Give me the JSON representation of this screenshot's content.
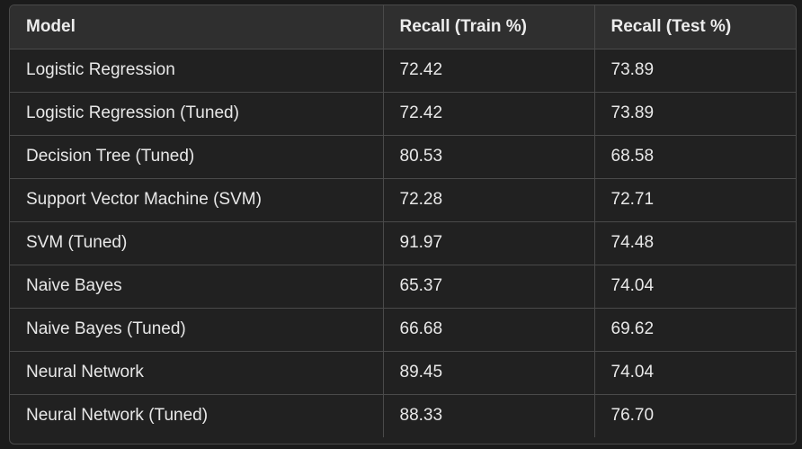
{
  "table": {
    "headers": [
      "Model",
      "Recall (Train %)",
      "Recall (Test %)"
    ],
    "rows": [
      [
        "Logistic Regression",
        "72.42",
        "73.89"
      ],
      [
        "Logistic Regression (Tuned)",
        "72.42",
        "73.89"
      ],
      [
        "Decision Tree (Tuned)",
        "80.53",
        "68.58"
      ],
      [
        "Support Vector Machine (SVM)",
        "72.28",
        "72.71"
      ],
      [
        "SVM (Tuned)",
        "91.97",
        "74.48"
      ],
      [
        "Naive Bayes",
        "65.37",
        "74.04"
      ],
      [
        "Naive Bayes (Tuned)",
        "66.68",
        "69.62"
      ],
      [
        "Neural Network",
        "89.45",
        "74.04"
      ],
      [
        "Neural Network (Tuned)",
        "88.33",
        "76.70"
      ]
    ]
  },
  "colors": {
    "background": "#1b1b1b",
    "table_background": "#212121",
    "header_background": "#2f2f2f",
    "border": "#4a4a4a",
    "text": "#ececec"
  }
}
